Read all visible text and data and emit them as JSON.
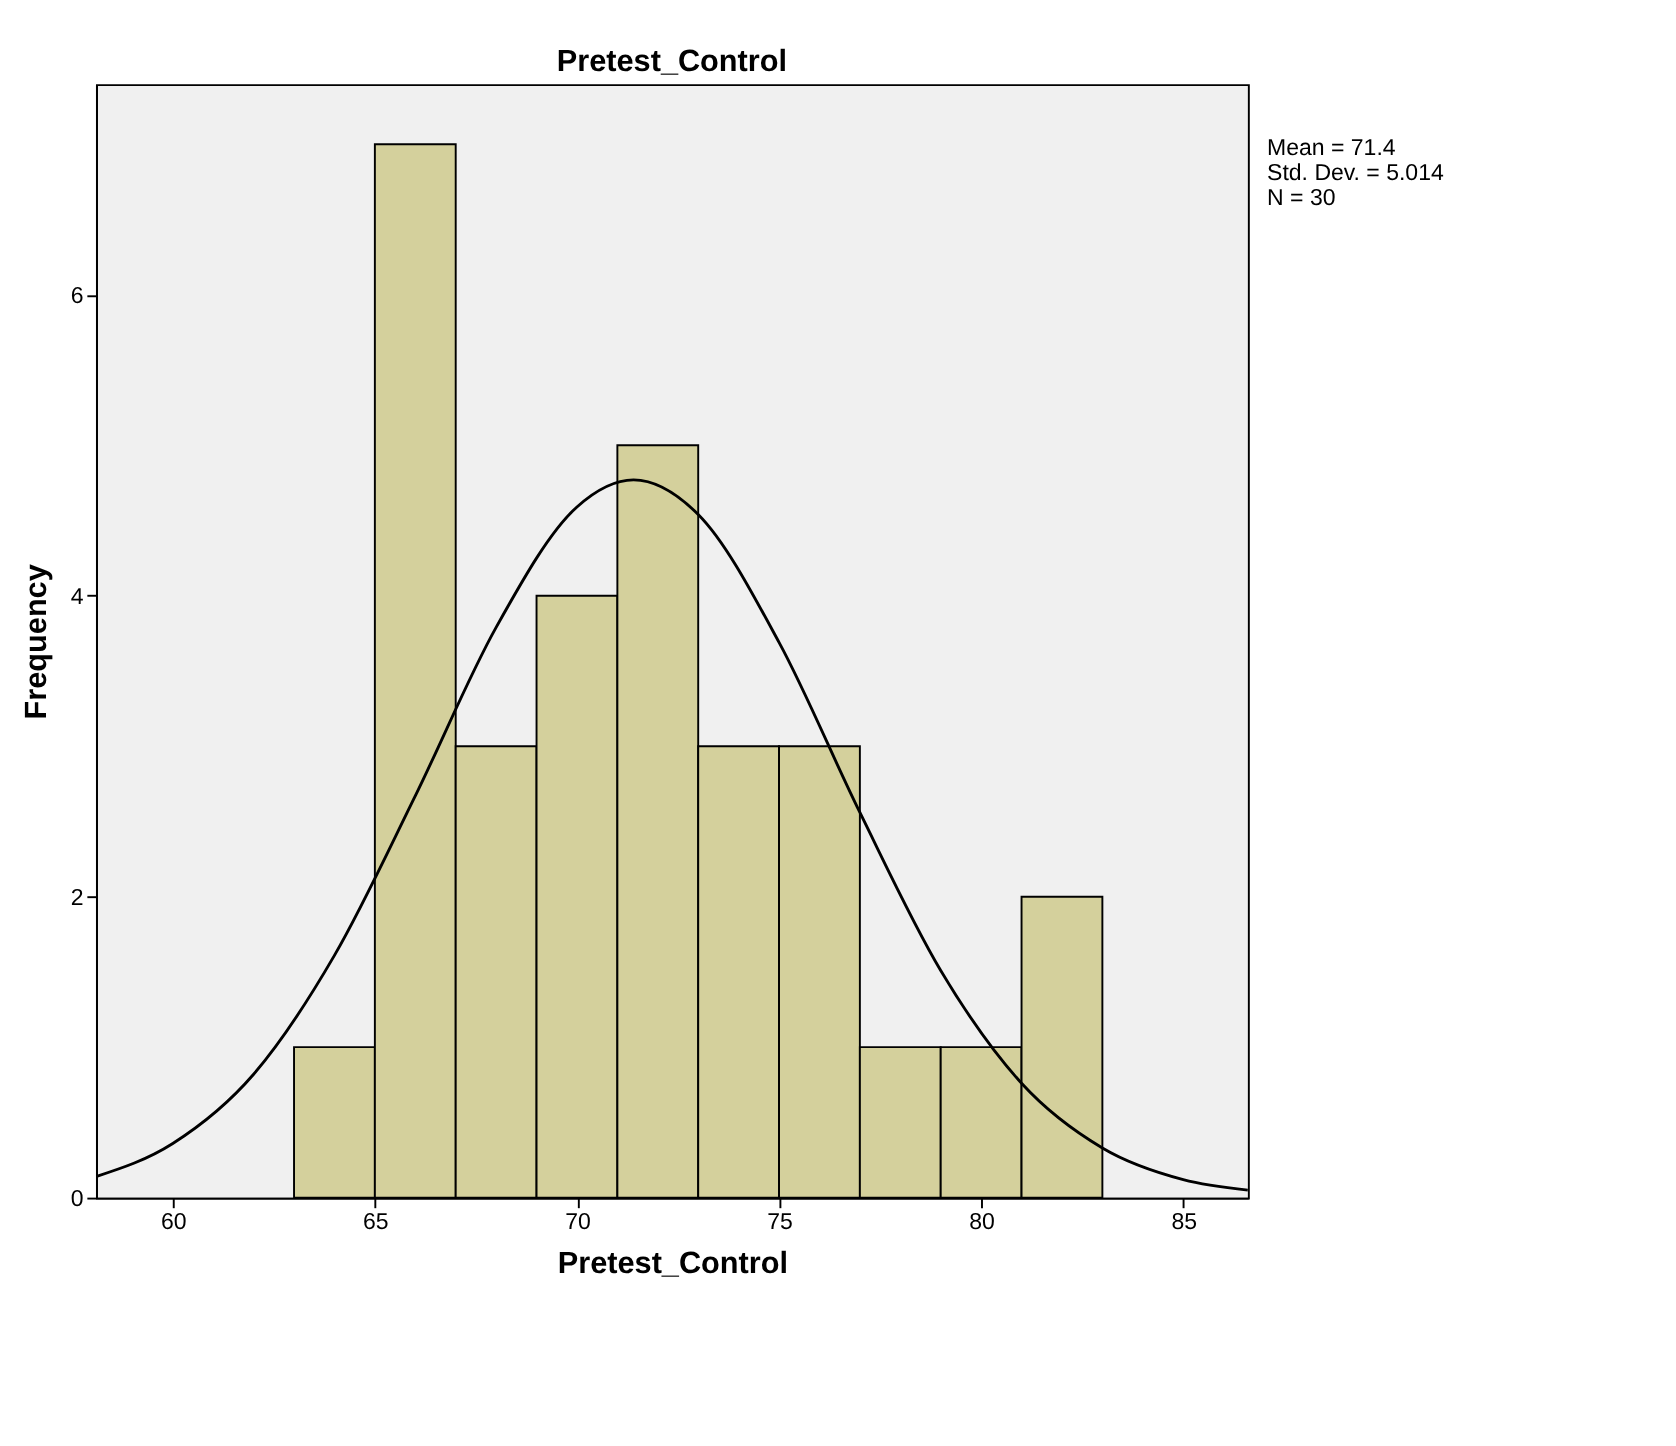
{
  "chart_data": {
    "type": "histogram",
    "title": "Pretest_Control",
    "xlabel": "Pretest_Control",
    "ylabel": "Frequency",
    "bins": [
      63,
      65,
      67,
      69,
      71,
      73,
      75,
      77,
      79,
      81,
      83
    ],
    "values": [
      1,
      7,
      3,
      4,
      5,
      3,
      3,
      1,
      1,
      2
    ],
    "color": "#d4d09c",
    "series": [
      {
        "type": "line",
        "color": "#000000",
        "x": [
          58.1,
          60,
          62,
          64,
          66,
          68,
          70,
          71.4,
          73,
          75,
          77,
          79,
          81,
          83,
          85,
          86.6
        ],
        "values": [
          0.14,
          0.36,
          0.82,
          1.61,
          2.67,
          3.79,
          4.59,
          4.77,
          4.54,
          3.69,
          2.56,
          1.51,
          0.76,
          0.33,
          0.12,
          0.05
        ]
      }
    ],
    "xlim": [
      58.1,
      86.6
    ],
    "ylim": [
      0,
      7.4
    ],
    "xticks": [
      60,
      65,
      70,
      75,
      80,
      85
    ],
    "yticks": [
      0,
      2,
      4,
      6
    ],
    "grid": false,
    "annotations": [
      "Mean = 71.4",
      "Std. Dev. = 5.014",
      "N = 30"
    ]
  }
}
